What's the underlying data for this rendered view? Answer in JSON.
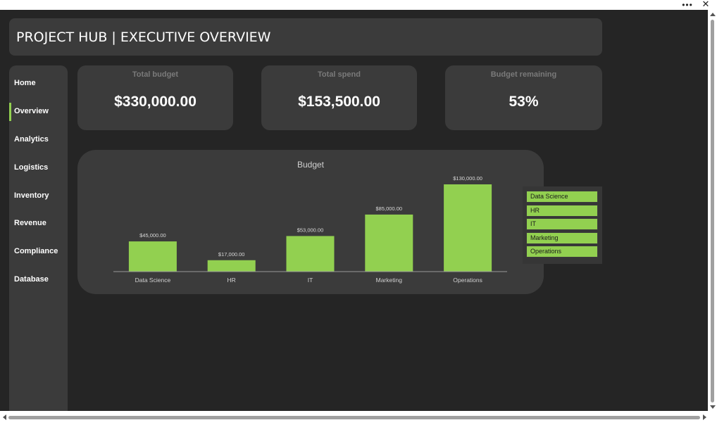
{
  "window": {
    "more_icon": "more-horizontal-icon",
    "more_glyph": "•••",
    "close_icon": "close-icon",
    "close_glyph": "✕"
  },
  "header": {
    "title": "PROJECT HUB | EXECUTIVE OVERVIEW"
  },
  "sidebar": {
    "active_index": 1,
    "items": [
      {
        "label": "Home"
      },
      {
        "label": "Overview"
      },
      {
        "label": "Analytics"
      },
      {
        "label": "Logistics"
      },
      {
        "label": "Inventory"
      },
      {
        "label": "Revenue"
      },
      {
        "label": "Compliance"
      },
      {
        "label": "Database"
      }
    ]
  },
  "kpis": [
    {
      "label": "Total budget",
      "value": "$330,000.00"
    },
    {
      "label": "Total spend",
      "value": "$153,500.00"
    },
    {
      "label": "Budget remaining",
      "value": "53%"
    }
  ],
  "colors": {
    "accent": "#92d050",
    "background": "#252525",
    "panel": "#3b3b3b"
  },
  "chart_data": {
    "type": "bar",
    "title": "Budget",
    "categories": [
      "Data Science",
      "HR",
      "IT",
      "Marketing",
      "Operations"
    ],
    "values": [
      45000,
      17000,
      53000,
      85000,
      130000
    ],
    "data_labels": [
      "$45,000.00",
      "$17,000.00",
      "$53,000.00",
      "$85,000.00",
      "$130,000.00"
    ],
    "ylim": [
      0,
      130000
    ],
    "grid": false,
    "legend_position": "right"
  }
}
